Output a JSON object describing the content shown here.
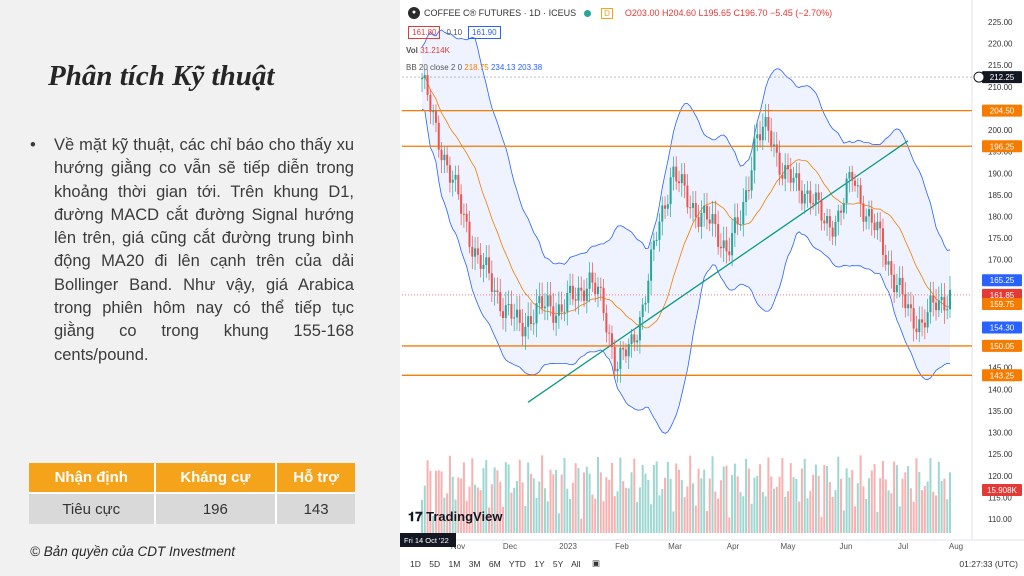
{
  "slide": {
    "title": "Phân tích Kỹ thuật",
    "bullet": "Về mặt kỹ thuật, các chỉ báo cho thấy xu hướng giằng co vẫn sẽ tiếp diễn trong khoảng thời gian tới. Trên khung D1, đường MACD cắt đường Signal hướng lên trên, giá cũng cắt đường trung bình động MA20 đi lên cạnh trên của dải Bollinger Band. Như vậy, giá Arabica trong phiên hôm nay có thể tiếp tục giằng co trong khung 155-168 cents/pound.",
    "table": {
      "headers": [
        "Nhận định",
        "Kháng cự",
        "Hỗ trợ"
      ],
      "row": [
        "Tiêu cực",
        "196",
        "143"
      ]
    },
    "copyright": "© Bản quyền của CDT Investment"
  },
  "chart": {
    "header": {
      "icon": "coffee-symbol-icon",
      "symbol": "COFFEE C® FUTURES · 1D · ICEUS",
      "badge": "D",
      "ohlc": "O203.00 H204.60 L195.65 C196.70 −5.45 (−2.70%)"
    },
    "bid": "161.80",
    "spread": "0.10",
    "ask": "161.90",
    "vol_label": "Vol",
    "vol_value": "31.214K",
    "bb_label": "BB 20 close 2 0",
    "bb_basis": "218.75",
    "bb_upper": "234.13",
    "bb_lower": "203.38",
    "brand": "TradingView",
    "crosshair_date": "Fri 14 Oct '22",
    "price_axis": [
      "225.00",
      "220.00",
      "215.00",
      "210.00",
      "205.00",
      "200.00",
      "195.00",
      "190.00",
      "185.00",
      "180.00",
      "175.00",
      "170.00",
      "165.00",
      "160.00",
      "155.00",
      "150.00",
      "145.00",
      "140.00",
      "135.00",
      "130.00",
      "125.00",
      "120.00",
      "115.00",
      "110.00"
    ],
    "time_axis": [
      "Nov",
      "Dec",
      "2023",
      "Feb",
      "Mar",
      "Apr",
      "May",
      "Jun",
      "Jul",
      "Aug"
    ],
    "price_labels": [
      {
        "text": "212.25",
        "price": 212.25,
        "color": "#131722"
      },
      {
        "text": "204.50",
        "price": 204.5,
        "color": "#f57c00"
      },
      {
        "text": "196.25",
        "price": 196.25,
        "color": "#f57c00"
      },
      {
        "text": "165.25",
        "price": 165.25,
        "color": "#2962ff"
      },
      {
        "text": "161.85",
        "price": 161.85,
        "color": "#e53935"
      },
      {
        "text": "159.75",
        "price": 159.75,
        "color": "#f57c00"
      },
      {
        "text": "154.30",
        "price": 154.3,
        "color": "#2962ff"
      },
      {
        "text": "150.05",
        "price": 150.05,
        "color": "#f57c00"
      },
      {
        "text": "143.25",
        "price": 143.25,
        "color": "#f57c00"
      },
      {
        "text": "15.908K",
        "price": 116.7,
        "color": "#e53935"
      }
    ],
    "horizontal_levels": [
      204.5,
      196.25,
      150.05,
      143.25
    ],
    "timeframes": [
      "1D",
      "5D",
      "1M",
      "3M",
      "6M",
      "YTD",
      "1Y",
      "5Y",
      "All"
    ],
    "clock": "01:27:33 (UTC)",
    "colors": {
      "up": "#26a69a",
      "down": "#ef5350",
      "level": "#f57c00",
      "band": "#2962ff",
      "trend": "#089981"
    }
  },
  "chart_data": {
    "type": "candlestick",
    "title": "COFFEE C® FUTURES · 1D · ICEUS",
    "ylim": [
      107,
      227
    ],
    "x_range": [
      "2022-10-14",
      "2023-08-04"
    ],
    "closes_approx": [
      212,
      200,
      190,
      180,
      170,
      165,
      158,
      155,
      157,
      160,
      158,
      162,
      165,
      160,
      145,
      150,
      160,
      178,
      190,
      185,
      180,
      178,
      172,
      180,
      198,
      200,
      190,
      187,
      185,
      178,
      180,
      190,
      180,
      175,
      165,
      158,
      155,
      160,
      161.85
    ],
    "resistance": 196,
    "support": 143
  }
}
